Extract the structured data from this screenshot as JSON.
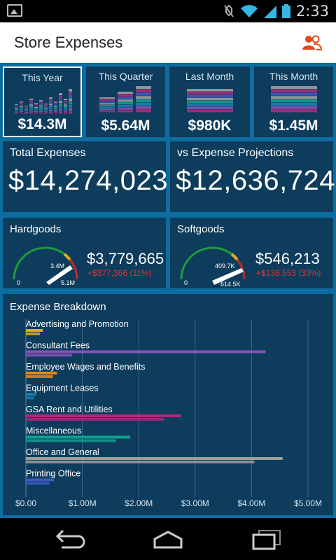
{
  "status": {
    "time": "2:33"
  },
  "appbar": {
    "title": "Store Expenses"
  },
  "periods": [
    {
      "label": "This Year",
      "value": "$14.3M"
    },
    {
      "label": "This Quarter",
      "value": "$5.64M"
    },
    {
      "label": "Last Month",
      "value": "$980K"
    },
    {
      "label": "This Month",
      "value": "$1.45M"
    }
  ],
  "totals": {
    "total_label": "Total Expenses",
    "total_value": "$14,274,023",
    "proj_label": "vs Expense Projections",
    "proj_value": "$12,636,724"
  },
  "gauges": [
    {
      "label": "Hardgoods",
      "value": "$3,779,665",
      "delta": "+$377,366 (11%)",
      "min": "0",
      "target": "3.4M",
      "max": "5.1M",
      "fraction": 0.74
    },
    {
      "label": "Softgoods",
      "value": "$546,213",
      "delta": "+$136,553 (33%)",
      "min": "0",
      "target": "409.7K",
      "max": "614.5K",
      "fraction": 0.89
    }
  ],
  "colors": {
    "tile_bg": "#0d3c5c",
    "main_bg": "#0e6da0",
    "advertising": "#d6b11f",
    "consultant": "#8a52b8",
    "wages": "#e38a18",
    "equipment": "#1d7fb0",
    "gsa": "#b0287a",
    "misc": "#12a08e",
    "office": "#9e9e9e",
    "printing": "#3f59c2"
  },
  "chart_data": {
    "type": "bar",
    "orientation": "horizontal",
    "title": "Expense Breakdown",
    "categories": [
      "Advertising and Promotion",
      "Consultant Fees",
      "Employee Wages and Benefits",
      "Equipment Leases",
      "GSA Rent and Utilities",
      "Miscellaneous",
      "Office and General",
      "Printing Office"
    ],
    "series": [
      {
        "values": [
          0.3,
          4.25,
          0.55,
          0.18,
          2.75,
          1.85,
          4.55,
          0.5
        ]
      },
      {
        "values": [
          0.25,
          0.82,
          0.48,
          0.14,
          2.45,
          1.6,
          4.05,
          0.42
        ]
      }
    ],
    "xlim": [
      0,
      5
    ],
    "x_ticks": [
      "$0.00",
      "$1.00M",
      "$2.00M",
      "$3.00M",
      "$4.00M",
      "$5.00M"
    ],
    "grid": true
  }
}
